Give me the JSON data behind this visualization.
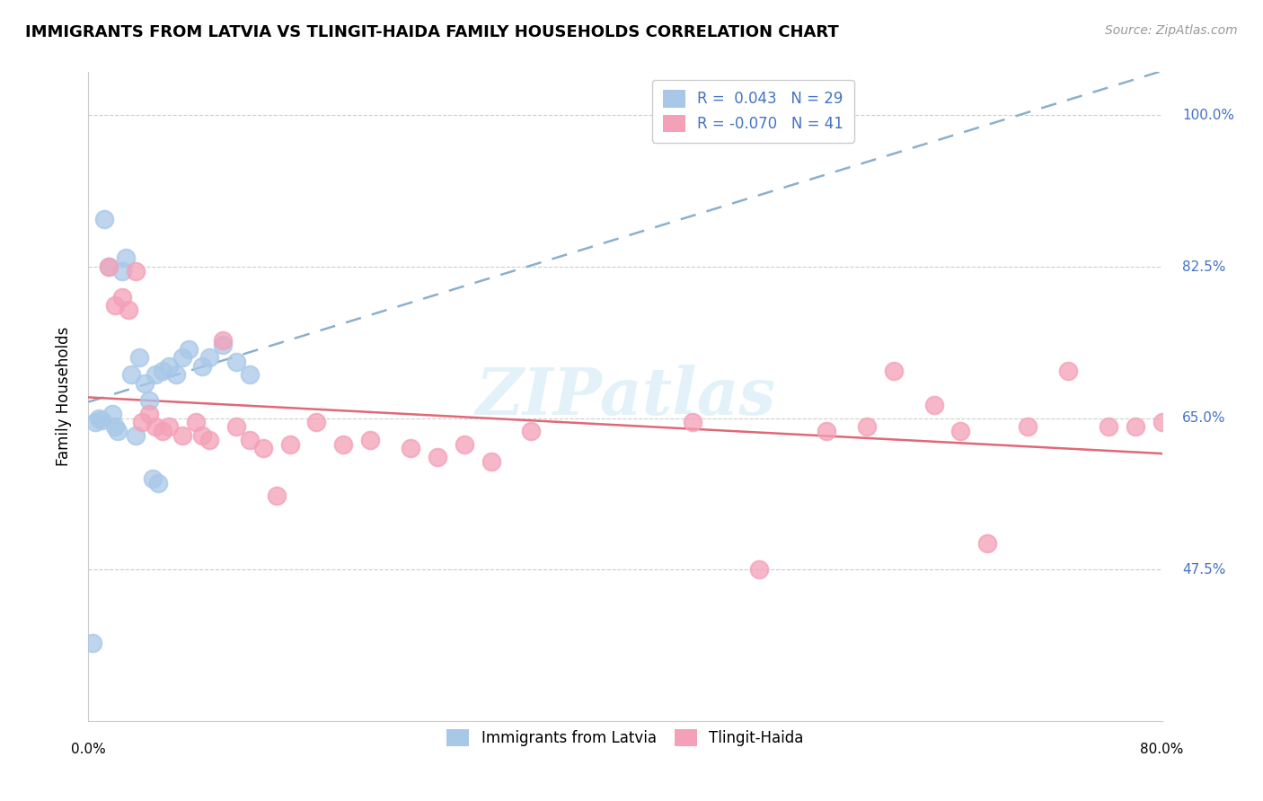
{
  "title": "IMMIGRANTS FROM LATVIA VS TLINGIT-HAIDA FAMILY HOUSEHOLDS CORRELATION CHART",
  "source": "Source: ZipAtlas.com",
  "ylabel": "Family Households",
  "y_tick_labels": [
    "47.5%",
    "65.0%",
    "82.5%",
    "100.0%"
  ],
  "y_ticks_pct": [
    47.5,
    65.0,
    82.5,
    100.0
  ],
  "legend_r1": "R =  0.043",
  "legend_n1": "N = 29",
  "legend_r2": "R = -0.070",
  "legend_n2": "N = 41",
  "color_blue": "#a8c8e8",
  "color_pink": "#f4a0b8",
  "trendline_blue_color": "#8ab0cc",
  "trendline_pink_color": "#e06878",
  "watermark": "ZIPatlas",
  "blue_scatter_x": [
    0.3,
    1.2,
    1.5,
    2.5,
    2.8,
    3.2,
    3.8,
    4.2,
    4.5,
    5.0,
    5.5,
    6.0,
    6.5,
    7.0,
    7.5,
    8.5,
    9.0,
    10.0,
    11.0,
    12.0,
    0.5,
    0.8,
    1.0,
    1.8,
    2.0,
    2.2,
    3.5,
    4.8,
    5.2
  ],
  "blue_scatter_y": [
    39.0,
    88.0,
    82.5,
    82.0,
    83.5,
    70.0,
    72.0,
    69.0,
    67.0,
    70.0,
    70.5,
    71.0,
    70.0,
    72.0,
    73.0,
    71.0,
    72.0,
    73.5,
    71.5,
    70.0,
    64.5,
    65.0,
    64.8,
    65.5,
    64.0,
    63.5,
    63.0,
    58.0,
    57.5
  ],
  "pink_scatter_x": [
    1.5,
    2.0,
    2.5,
    3.0,
    3.5,
    4.0,
    4.5,
    5.0,
    5.5,
    6.0,
    7.0,
    8.0,
    8.5,
    9.0,
    10.0,
    11.0,
    12.0,
    13.0,
    14.0,
    15.0,
    17.0,
    19.0,
    21.0,
    24.0,
    26.0,
    28.0,
    30.0,
    33.0,
    60.0,
    63.0,
    65.0,
    67.0,
    70.0,
    73.0,
    76.0,
    78.0,
    80.0,
    45.0,
    50.0,
    55.0,
    58.0
  ],
  "pink_scatter_y": [
    82.5,
    78.0,
    79.0,
    77.5,
    82.0,
    64.5,
    65.5,
    64.0,
    63.5,
    64.0,
    63.0,
    64.5,
    63.0,
    62.5,
    74.0,
    64.0,
    62.5,
    61.5,
    56.0,
    62.0,
    64.5,
    62.0,
    62.5,
    61.5,
    60.5,
    62.0,
    60.0,
    63.5,
    70.5,
    66.5,
    63.5,
    50.5,
    64.0,
    70.5,
    64.0,
    64.0,
    64.5,
    64.5,
    47.5,
    63.5,
    64.0
  ],
  "xlim_pct": [
    0.0,
    80.0
  ],
  "ylim_pct": [
    30.0,
    105.0
  ],
  "figsize": [
    14.06,
    8.92
  ],
  "dpi": 100
}
